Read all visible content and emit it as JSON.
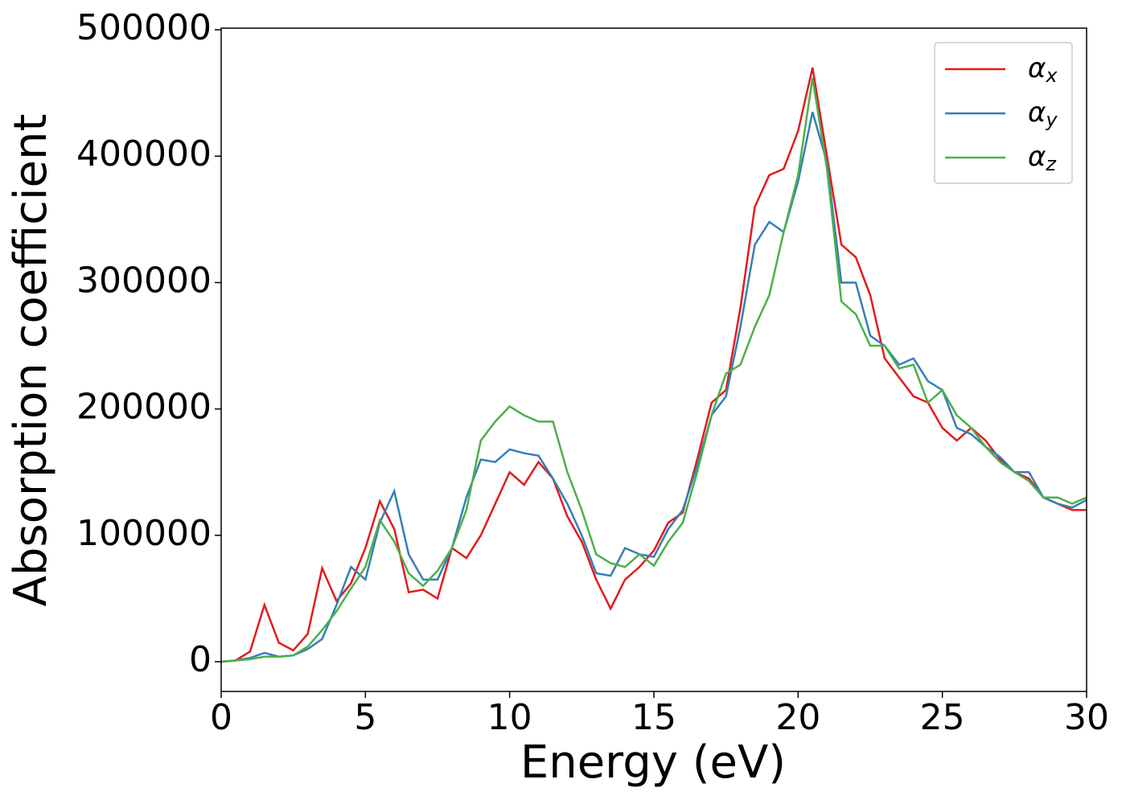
{
  "chart_data": {
    "type": "line",
    "xlabel": "Energy (eV)",
    "ylabel": "Absorption coefficient",
    "x": [
      0,
      0.5,
      1,
      1.5,
      2,
      2.5,
      3,
      3.5,
      4,
      4.5,
      5,
      5.5,
      6,
      6.5,
      7,
      7.5,
      8,
      8.5,
      9,
      9.5,
      10,
      10.5,
      11,
      11.5,
      12,
      12.5,
      13,
      13.5,
      14,
      14.5,
      15,
      15.5,
      16,
      16.5,
      17,
      17.5,
      18,
      18.5,
      19,
      19.5,
      20,
      20.5,
      21,
      21.5,
      22,
      22.5,
      23,
      23.5,
      24,
      24.5,
      25,
      25.5,
      26,
      26.5,
      27,
      27.5,
      28,
      28.5,
      29,
      29.5,
      30
    ],
    "series": [
      {
        "name": "αx",
        "color": "#e41a1c",
        "values": [
          0,
          1000,
          8000,
          45000,
          15000,
          9000,
          22000,
          74000,
          48000,
          62000,
          90000,
          127000,
          105000,
          55000,
          57000,
          50000,
          90000,
          82000,
          100000,
          125000,
          150000,
          140000,
          158000,
          145000,
          115000,
          95000,
          65000,
          42000,
          65000,
          75000,
          88000,
          110000,
          118000,
          160000,
          205000,
          215000,
          280000,
          360000,
          385000,
          390000,
          420000,
          470000,
          400000,
          330000,
          320000,
          290000,
          240000,
          225000,
          210000,
          205000,
          185000,
          175000,
          185000,
          175000,
          160000,
          150000,
          145000,
          130000,
          125000,
          120000,
          120000
        ]
      },
      {
        "name": "αy",
        "color": "#377eb8",
        "values": [
          0,
          1000,
          3000,
          7000,
          4000,
          5000,
          10000,
          18000,
          45000,
          75000,
          65000,
          110000,
          135000,
          85000,
          65000,
          65000,
          90000,
          130000,
          160000,
          158000,
          168000,
          165000,
          163000,
          145000,
          125000,
          100000,
          70000,
          68000,
          90000,
          85000,
          83000,
          105000,
          120000,
          155000,
          195000,
          210000,
          265000,
          330000,
          348000,
          340000,
          380000,
          435000,
          395000,
          300000,
          300000,
          258000,
          250000,
          235000,
          240000,
          222000,
          215000,
          185000,
          180000,
          170000,
          162000,
          150000,
          150000,
          130000,
          125000,
          122000,
          128000
        ]
      },
      {
        "name": "αz",
        "color": "#4daf4a",
        "values": [
          0,
          1000,
          2000,
          4000,
          4000,
          5000,
          12000,
          25000,
          40000,
          58000,
          75000,
          112000,
          95000,
          70000,
          60000,
          72000,
          90000,
          120000,
          175000,
          190000,
          202000,
          195000,
          190000,
          190000,
          150000,
          120000,
          85000,
          78000,
          75000,
          85000,
          76000,
          95000,
          110000,
          150000,
          195000,
          228000,
          235000,
          265000,
          290000,
          340000,
          385000,
          462000,
          390000,
          285000,
          275000,
          250000,
          250000,
          232000,
          235000,
          205000,
          215000,
          195000,
          185000,
          170000,
          158000,
          150000,
          143000,
          130000,
          130000,
          125000,
          130000
        ]
      }
    ],
    "xlim": [
      0,
      30
    ],
    "xticks": [
      0,
      5,
      10,
      15,
      20,
      25,
      30
    ],
    "ylim": [
      -23500,
      501300
    ],
    "yticks": [
      0,
      100000,
      200000,
      300000,
      400000,
      500000
    ],
    "legend": "upper right"
  }
}
